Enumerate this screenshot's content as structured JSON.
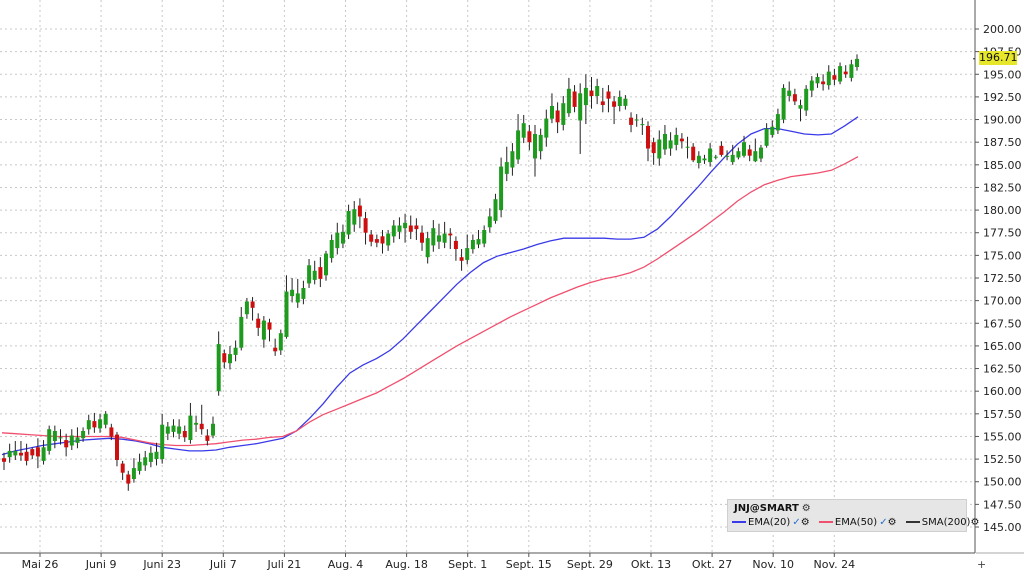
{
  "chart_data": {
    "type": "candlestick",
    "symbol": "JNJ@SMART",
    "last_price": "196.71",
    "y_ticks": [
      "145.00",
      "147.50",
      "150.00",
      "152.50",
      "155.00",
      "157.50",
      "160.00",
      "162.50",
      "165.00",
      "167.50",
      "170.00",
      "172.50",
      "175.00",
      "177.50",
      "180.00",
      "182.50",
      "185.00",
      "187.50",
      "190.00",
      "192.50",
      "195.00",
      "197.50",
      "200.00"
    ],
    "ylim": [
      142.5,
      203.0
    ],
    "x_labels": [
      "Mai 26",
      "Juni 9",
      "Juni 23",
      "Juli 7",
      "Juli 21",
      "Aug. 4",
      "Aug. 18",
      "Sept. 1",
      "Sept. 15",
      "Sept. 29",
      "Okt. 13",
      "Okt. 27",
      "Nov. 10",
      "Nov. 24"
    ],
    "grid": true,
    "legend_position": "bottom-right",
    "colors": {
      "up": "#1e9b1e",
      "down": "#cc1010",
      "ema20": "#3a3ae8",
      "ema50": "#f0506e",
      "sma200": "#333333",
      "badge": "#e6e62a"
    },
    "series": [
      {
        "name": "EMA(20)",
        "values": [
          153.0,
          153.4,
          153.7,
          154.0,
          154.2,
          154.4,
          154.6,
          154.7,
          154.8,
          154.7,
          154.5,
          154.2,
          153.8,
          153.6,
          153.4,
          153.4,
          153.5,
          153.8,
          154.0,
          154.2,
          154.5,
          154.8,
          155.6,
          157.0,
          158.6,
          160.4,
          162.0,
          162.9,
          163.6,
          164.5,
          165.8,
          167.3,
          168.8,
          170.3,
          171.8,
          173.1,
          174.2,
          174.9,
          175.3,
          175.7,
          176.2,
          176.6,
          176.9,
          176.9,
          176.9,
          176.9,
          176.8,
          176.8,
          177.0,
          177.9,
          179.3,
          180.9,
          182.5,
          184.2,
          185.8,
          187.3,
          188.4,
          189.0,
          189.0,
          188.7,
          188.4,
          188.3,
          188.4,
          189.3,
          190.3
        ]
      },
      {
        "name": "EMA(50)",
        "values": [
          155.4,
          155.3,
          155.2,
          155.1,
          155.0,
          155.0,
          155.0,
          155.0,
          155.0,
          154.9,
          154.6,
          154.3,
          154.1,
          154.0,
          154.0,
          154.1,
          154.2,
          154.4,
          154.6,
          154.7,
          154.9,
          155.0,
          155.6,
          156.6,
          157.4,
          158.0,
          158.6,
          159.2,
          159.8,
          160.6,
          161.4,
          162.3,
          163.2,
          164.1,
          165.0,
          165.8,
          166.6,
          167.4,
          168.2,
          168.9,
          169.6,
          170.3,
          170.9,
          171.5,
          172.0,
          172.4,
          172.7,
          173.1,
          173.7,
          174.6,
          175.6,
          176.6,
          177.6,
          178.7,
          179.8,
          181.0,
          182.0,
          182.8,
          183.3,
          183.7,
          183.9,
          184.1,
          184.4,
          185.1,
          185.9
        ]
      }
    ],
    "candles": [
      [
        152.6,
        152.2,
        153.2,
        151.3
      ],
      [
        152.7,
        153.4,
        154.2,
        152.1
      ],
      [
        152.9,
        153.4,
        154.5,
        152.4
      ],
      [
        153.2,
        152.9,
        154.5,
        152.3
      ],
      [
        153.3,
        152.3,
        154.2,
        151.8
      ],
      [
        153.6,
        152.9,
        153.8,
        152.5
      ],
      [
        153.8,
        152.8,
        154.8,
        151.5
      ],
      [
        152.3,
        153.8,
        154.6,
        151.9
      ],
      [
        153.4,
        155.8,
        156.2,
        153.0
      ],
      [
        154.5,
        155.6,
        156.2,
        153.7
      ],
      [
        154.8,
        154.9,
        155.8,
        154.1
      ],
      [
        154.6,
        153.8,
        155.3,
        152.8
      ],
      [
        154.0,
        155.1,
        155.8,
        153.5
      ],
      [
        154.3,
        154.9,
        156.0,
        153.7
      ],
      [
        154.8,
        155.6,
        156.0,
        154.4
      ],
      [
        155.8,
        156.8,
        157.4,
        155.2
      ],
      [
        156.7,
        156.0,
        157.6,
        155.4
      ],
      [
        155.9,
        156.9,
        157.5,
        155.4
      ],
      [
        156.3,
        157.5,
        157.8,
        155.9
      ],
      [
        156.0,
        155.0,
        156.4,
        154.6
      ],
      [
        155.2,
        152.4,
        155.5,
        151.7
      ],
      [
        152.0,
        151.0,
        152.3,
        150.2
      ],
      [
        150.8,
        149.8,
        151.2,
        149.0
      ],
      [
        150.3,
        151.5,
        152.6,
        149.9
      ],
      [
        151.2,
        152.2,
        153.1,
        150.8
      ],
      [
        151.8,
        152.7,
        153.4,
        151.2
      ],
      [
        152.2,
        153.2,
        153.9,
        151.6
      ],
      [
        152.5,
        153.3,
        154.3,
        151.8
      ],
      [
        152.5,
        156.3,
        157.5,
        152.0
      ],
      [
        155.3,
        156.1,
        156.6,
        154.6
      ],
      [
        155.5,
        156.2,
        156.9,
        154.9
      ],
      [
        155.3,
        156.1,
        156.9,
        154.7
      ],
      [
        155.6,
        154.9,
        156.2,
        154.4
      ],
      [
        154.6,
        157.3,
        158.7,
        154.2
      ],
      [
        156.3,
        156.5,
        157.3,
        155.5
      ],
      [
        156.4,
        155.8,
        158.5,
        155.2
      ],
      [
        155.1,
        154.5,
        155.8,
        154.0
      ],
      [
        155.1,
        156.4,
        157.2,
        154.8
      ],
      [
        160.0,
        165.2,
        166.6,
        159.5
      ],
      [
        164.2,
        163.2,
        164.6,
        162.5
      ],
      [
        163.1,
        164.1,
        165.0,
        162.4
      ],
      [
        164.0,
        164.8,
        165.6,
        163.3
      ],
      [
        164.8,
        168.2,
        169.3,
        164.5
      ],
      [
        168.5,
        169.9,
        170.3,
        168.0
      ],
      [
        169.9,
        169.2,
        170.4,
        167.8
      ],
      [
        168.0,
        167.0,
        168.6,
        166.1
      ],
      [
        165.7,
        167.8,
        168.3,
        164.8
      ],
      [
        167.6,
        166.8,
        168.0,
        165.5
      ],
      [
        164.8,
        164.4,
        165.8,
        163.9
      ],
      [
        164.5,
        166.4,
        166.8,
        164.0
      ],
      [
        166.0,
        171.0,
        172.8,
        165.8
      ],
      [
        170.5,
        171.2,
        172.5,
        169.8
      ],
      [
        169.8,
        170.8,
        172.4,
        169.2
      ],
      [
        170.2,
        171.4,
        172.2,
        169.6
      ],
      [
        171.9,
        173.9,
        174.6,
        171.4
      ],
      [
        172.3,
        173.3,
        174.4,
        171.8
      ],
      [
        173.7,
        172.4,
        174.8,
        171.5
      ],
      [
        172.8,
        175.2,
        175.5,
        172.2
      ],
      [
        174.7,
        176.7,
        177.3,
        174.2
      ],
      [
        175.8,
        177.5,
        178.6,
        175.1
      ],
      [
        176.3,
        177.6,
        178.4,
        175.8
      ],
      [
        177.3,
        179.9,
        180.6,
        176.8
      ],
      [
        178.4,
        180.1,
        181.0,
        177.6
      ],
      [
        180.5,
        179.3,
        181.3,
        178.0
      ],
      [
        179.1,
        177.5,
        179.8,
        176.2
      ],
      [
        177.3,
        176.5,
        177.8,
        176.0
      ],
      [
        176.8,
        176.4,
        177.3,
        175.9
      ],
      [
        177.1,
        176.3,
        177.8,
        175.2
      ],
      [
        176.1,
        177.4,
        177.8,
        175.5
      ],
      [
        177.1,
        178.3,
        178.9,
        176.4
      ],
      [
        177.6,
        178.3,
        179.2,
        176.8
      ],
      [
        178.0,
        178.6,
        179.6,
        176.4
      ],
      [
        178.3,
        177.6,
        179.4,
        176.8
      ],
      [
        178.3,
        177.9,
        179.1,
        176.7
      ],
      [
        177.5,
        176.4,
        178.3,
        175.5
      ],
      [
        174.8,
        176.9,
        177.6,
        174.1
      ],
      [
        176.1,
        178.0,
        178.9,
        175.4
      ],
      [
        176.5,
        177.2,
        178.5,
        175.7
      ],
      [
        176.4,
        177.4,
        178.7,
        175.8
      ],
      [
        177.4,
        177.2,
        178.0,
        175.7
      ],
      [
        176.6,
        175.7,
        177.1,
        174.4
      ],
      [
        174.8,
        174.4,
        175.7,
        173.3
      ],
      [
        174.5,
        175.8,
        177.3,
        174.0
      ],
      [
        175.7,
        176.7,
        177.3,
        175.2
      ],
      [
        176.2,
        176.8,
        177.8,
        175.8
      ],
      [
        176.3,
        177.8,
        178.3,
        175.9
      ],
      [
        178.1,
        179.3,
        180.2,
        177.5
      ],
      [
        178.8,
        181.2,
        181.8,
        178.5
      ],
      [
        180.0,
        184.8,
        185.8,
        179.2
      ],
      [
        184.0,
        185.3,
        187.0,
        183.2
      ],
      [
        184.7,
        186.5,
        187.4,
        183.8
      ],
      [
        185.6,
        188.8,
        190.6,
        185.1
      ],
      [
        188.0,
        189.6,
        190.5,
        187.4
      ],
      [
        188.7,
        187.5,
        189.4,
        186.6
      ],
      [
        185.7,
        188.4,
        189.4,
        183.7
      ],
      [
        186.5,
        188.3,
        189.0,
        185.6
      ],
      [
        188.0,
        190.1,
        191.1,
        187.0
      ],
      [
        190.1,
        191.5,
        192.9,
        189.6
      ],
      [
        191.0,
        189.7,
        191.9,
        188.5
      ],
      [
        189.4,
        191.8,
        192.6,
        188.8
      ],
      [
        190.7,
        193.4,
        194.6,
        190.3
      ],
      [
        193.1,
        191.4,
        193.8,
        190.8
      ],
      [
        189.9,
        192.9,
        194.0,
        186.2
      ],
      [
        191.6,
        193.5,
        195.0,
        189.5
      ],
      [
        193.2,
        192.6,
        194.7,
        191.2
      ],
      [
        192.6,
        193.7,
        194.5,
        191.7
      ],
      [
        192.0,
        191.6,
        193.5,
        190.8
      ],
      [
        193.1,
        192.3,
        193.8,
        190.8
      ],
      [
        192.0,
        191.4,
        192.6,
        189.5
      ],
      [
        191.5,
        192.5,
        193.2,
        190.9
      ],
      [
        191.5,
        192.3,
        192.7,
        191.1
      ],
      [
        190.2,
        189.4,
        190.8,
        188.6
      ],
      [
        189.9,
        190.0,
        190.6,
        189.2
      ],
      [
        189.5,
        189.5,
        190.2,
        188.3
      ],
      [
        189.3,
        186.8,
        189.8,
        185.4
      ],
      [
        187.5,
        186.3,
        188.0,
        185.0
      ],
      [
        185.7,
        187.8,
        188.8,
        184.9
      ],
      [
        186.7,
        188.4,
        189.4,
        186.1
      ],
      [
        186.8,
        187.7,
        188.6,
        186.0
      ],
      [
        187.2,
        188.3,
        189.1,
        186.6
      ],
      [
        187.9,
        187.6,
        188.5,
        186.8
      ],
      [
        186.9,
        187.0,
        188.1,
        185.7
      ],
      [
        187.0,
        185.5,
        187.4,
        185.3
      ],
      [
        185.2,
        186.0,
        186.5,
        184.6
      ],
      [
        185.5,
        185.7,
        186.1,
        185.1
      ],
      [
        185.3,
        186.8,
        187.4,
        184.8
      ],
      [
        185.9,
        185.9,
        186.1,
        185.6
      ],
      [
        187.1,
        186.1,
        187.6,
        185.9
      ],
      [
        185.9,
        186.0,
        186.6,
        185.5
      ],
      [
        185.3,
        186.1,
        187.2,
        185.0
      ],
      [
        185.8,
        186.5,
        186.9,
        185.6
      ],
      [
        186.0,
        187.5,
        188.2,
        185.8
      ],
      [
        186.7,
        186.0,
        187.2,
        185.4
      ],
      [
        185.4,
        186.5,
        187.9,
        185.3
      ],
      [
        185.7,
        186.9,
        187.2,
        185.3
      ],
      [
        187.1,
        189.0,
        189.6,
        186.9
      ],
      [
        188.3,
        189.2,
        189.9,
        188.0
      ],
      [
        188.8,
        190.6,
        191.2,
        188.4
      ],
      [
        190.0,
        193.5,
        193.9,
        189.6
      ],
      [
        192.6,
        193.2,
        194.2,
        192.0
      ],
      [
        192.8,
        192.0,
        193.4,
        191.6
      ],
      [
        191.2,
        191.6,
        192.2,
        189.8
      ],
      [
        191.0,
        193.4,
        193.8,
        190.4
      ],
      [
        193.2,
        194.3,
        194.8,
        192.5
      ],
      [
        194.0,
        194.7,
        195.1,
        193.5
      ],
      [
        194.2,
        193.9,
        195.0,
        193.2
      ],
      [
        193.8,
        195.3,
        196.0,
        193.3
      ],
      [
        194.9,
        194.4,
        195.6,
        193.8
      ],
      [
        194.2,
        195.9,
        196.3,
        193.9
      ],
      [
        195.3,
        195.0,
        196.0,
        194.6
      ],
      [
        194.6,
        196.1,
        196.6,
        194.2
      ],
      [
        195.8,
        196.7,
        197.2,
        195.4
      ]
    ]
  },
  "legend": {
    "title": "JNJ@SMART",
    "items": [
      {
        "label": "EMA(20)"
      },
      {
        "label": "EMA(50)"
      },
      {
        "label": "SMA(200)"
      }
    ]
  },
  "price_badge": "196.71"
}
